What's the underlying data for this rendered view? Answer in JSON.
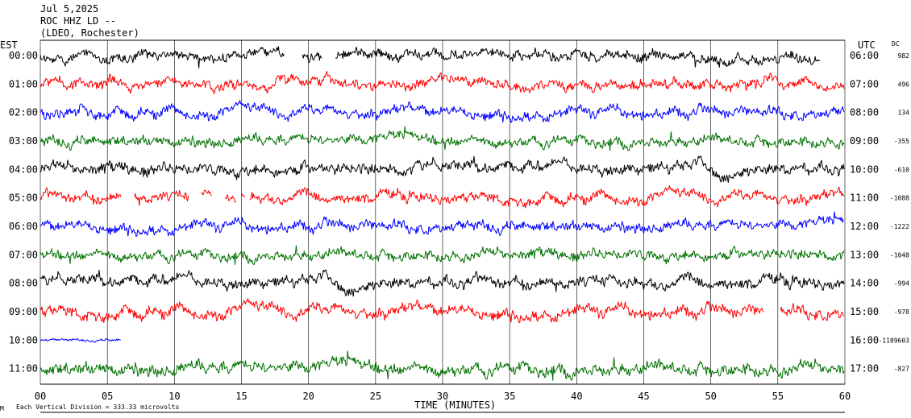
{
  "header": {
    "date": "Jul 5,2025",
    "station": "ROC HHZ LD --",
    "network": "(LDEO, Rochester)"
  },
  "left_zone_label": "EST",
  "right_zone_label": "UTC",
  "dc_header": "DC",
  "footer": {
    "scale_note": "Each Vertical Division = 333.33 microvolts",
    "corner_mark": "M"
  },
  "colors": {
    "black": "#000000",
    "red": "#ff0000",
    "blue": "#0000ff",
    "green": "#007000",
    "grid": "#000000"
  },
  "chart_data": {
    "type": "line",
    "title": "",
    "xlabel": "TIME (MINUTES)",
    "xlim": [
      0,
      60
    ],
    "x_ticks": [
      {
        "v": 0,
        "label": "00"
      },
      {
        "v": 5,
        "label": "05"
      },
      {
        "v": 10,
        "label": "10"
      },
      {
        "v": 15,
        "label": "15"
      },
      {
        "v": 20,
        "label": "20"
      },
      {
        "v": 25,
        "label": "25"
      },
      {
        "v": 30,
        "label": "30"
      },
      {
        "v": 35,
        "label": "35"
      },
      {
        "v": 40,
        "label": "40"
      },
      {
        "v": 45,
        "label": "45"
      },
      {
        "v": 50,
        "label": "50"
      },
      {
        "v": 55,
        "label": "55"
      },
      {
        "v": 60,
        "label": "60"
      }
    ],
    "grid": "vertical",
    "series": [
      {
        "est": "00:00",
        "utc": "06:00",
        "dc": "982",
        "color": "black",
        "amp": 1.0,
        "end": 58.2,
        "gaps": [
          [
            18.2,
            19.5
          ],
          [
            21.0,
            22.0
          ]
        ]
      },
      {
        "est": "01:00",
        "utc": "07:00",
        "dc": "496",
        "color": "red",
        "amp": 1.0,
        "end": 60,
        "gaps": []
      },
      {
        "est": "02:00",
        "utc": "08:00",
        "dc": "134",
        "color": "blue",
        "amp": 1.0,
        "end": 60,
        "gaps": []
      },
      {
        "est": "03:00",
        "utc": "09:00",
        "dc": "-355",
        "color": "green",
        "amp": 1.0,
        "end": 60,
        "gaps": []
      },
      {
        "est": "04:00",
        "utc": "10:00",
        "dc": "-610",
        "color": "black",
        "amp": 1.1,
        "end": 60,
        "gaps": []
      },
      {
        "est": "05:00",
        "utc": "11:00",
        "dc": "-1088",
        "color": "red",
        "amp": 1.0,
        "end": 60,
        "gaps": [
          [
            6.0,
            7.0
          ],
          [
            11.1,
            12.0
          ],
          [
            12.8,
            13.8
          ],
          [
            14.6,
            15.0
          ],
          [
            15.3,
            15.6
          ]
        ]
      },
      {
        "est": "06:00",
        "utc": "12:00",
        "dc": "-1222",
        "color": "blue",
        "amp": 1.0,
        "end": 60,
        "gaps": []
      },
      {
        "est": "07:00",
        "utc": "13:00",
        "dc": "-1048",
        "color": "green",
        "amp": 1.0,
        "end": 60,
        "gaps": []
      },
      {
        "est": "08:00",
        "utc": "14:00",
        "dc": "-994",
        "color": "black",
        "amp": 1.1,
        "end": 60,
        "gaps": []
      },
      {
        "est": "09:00",
        "utc": "15:00",
        "dc": "-978",
        "color": "red",
        "amp": 1.1,
        "end": 60,
        "gaps": [
          [
            54.0,
            55.2
          ]
        ]
      },
      {
        "est": "10:00",
        "utc": "16:00",
        "dc": "-1189603",
        "color": "blue",
        "amp": 0.25,
        "end": 6.0,
        "gaps": []
      },
      {
        "est": "11:00",
        "utc": "17:00",
        "dc": "-827",
        "color": "green",
        "amp": 1.2,
        "end": 60,
        "gaps": []
      }
    ]
  }
}
